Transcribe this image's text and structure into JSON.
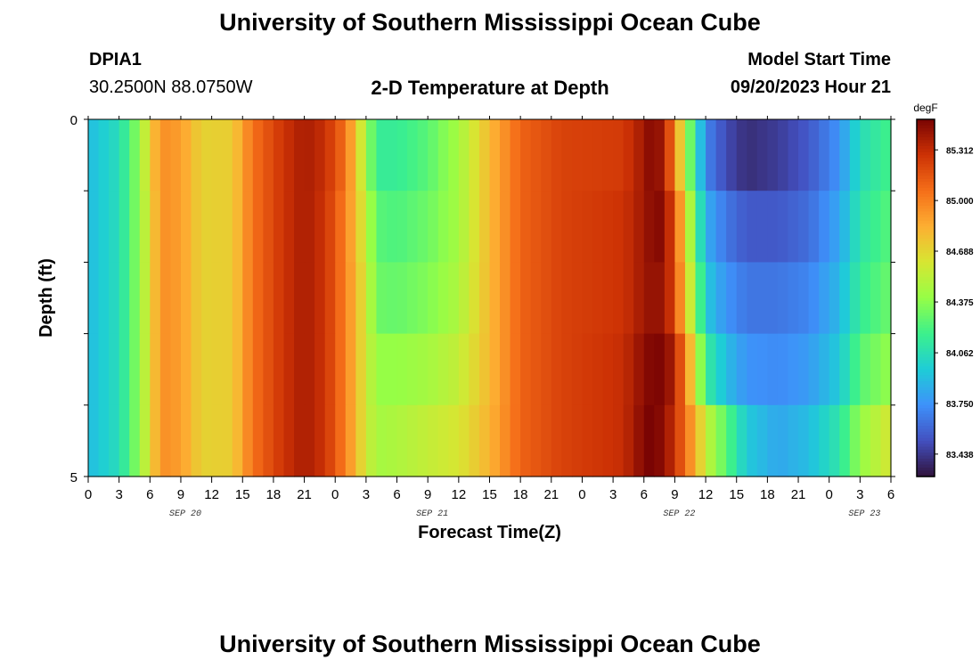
{
  "header": {
    "title": "University of Southern Mississippi Ocean Cube",
    "station_id": "DPIA1",
    "station_coords": "30.2500N  88.0750W",
    "plot_title": "2-D Temperature at Depth",
    "start_label": "Model Start Time",
    "start_value": "09/20/2023 Hour 21"
  },
  "footer": {
    "title": "University of Southern Mississippi Ocean Cube"
  },
  "chart_data": {
    "type": "heatmap",
    "title": "2-D Temperature at Depth",
    "xlabel": "Forecast Time(Z)",
    "ylabel": "Depth (ft)",
    "x_range_hours": [
      0,
      78
    ],
    "y_range": [
      0,
      5
    ],
    "y_ticks": [
      "0",
      "5"
    ],
    "x_ticks": [
      "0",
      "3",
      "6",
      "9",
      "12",
      "15",
      "18",
      "21",
      "0",
      "3",
      "6",
      "9",
      "12",
      "15",
      "18",
      "21",
      "0",
      "3",
      "6",
      "9",
      "12",
      "15",
      "18",
      "21",
      "0",
      "3",
      "6"
    ],
    "date_labels": [
      "SEP 20",
      "SEP 21",
      "SEP 22",
      "SEP 23"
    ],
    "colorbar": {
      "unit": "degF",
      "min": 83.3,
      "max": 85.5,
      "ticks": [
        "85.312",
        "85.000",
        "84.688",
        "84.375",
        "84.062",
        "83.750",
        "83.438"
      ]
    },
    "depth_layers": [
      0,
      1,
      2,
      3,
      4,
      5
    ],
    "columns_per_hour": 1,
    "temperature_profile": [
      {
        "h": 0,
        "t": [
          83.9,
          83.9,
          83.9,
          83.9,
          83.9
        ]
      },
      {
        "h": 3,
        "t": [
          84.05,
          84.05,
          84.05,
          84.05,
          84.05
        ]
      },
      {
        "h": 5,
        "t": [
          84.4,
          84.4,
          84.4,
          84.4,
          84.4
        ]
      },
      {
        "h": 6,
        "t": [
          84.7,
          84.65,
          84.65,
          84.65,
          84.65
        ]
      },
      {
        "h": 7,
        "t": [
          84.95,
          84.95,
          84.95,
          84.95,
          84.95
        ]
      },
      {
        "h": 9,
        "t": [
          84.9,
          84.9,
          84.9,
          84.9,
          84.9
        ]
      },
      {
        "h": 11,
        "t": [
          84.7,
          84.7,
          84.7,
          84.7,
          84.7
        ]
      },
      {
        "h": 14,
        "t": [
          84.72,
          84.72,
          84.72,
          84.72,
          84.72
        ]
      },
      {
        "h": 16,
        "t": [
          85.05,
          85.05,
          85.05,
          85.05,
          85.05
        ]
      },
      {
        "h": 19,
        "t": [
          85.28,
          85.28,
          85.28,
          85.28,
          85.28
        ]
      },
      {
        "h": 21,
        "t": [
          85.38,
          85.38,
          85.38,
          85.38,
          85.38
        ]
      },
      {
        "h": 23,
        "t": [
          85.3,
          85.28,
          85.28,
          85.28,
          85.28
        ]
      },
      {
        "h": 25,
        "t": [
          85.05,
          85.0,
          85.0,
          85.0,
          85.0
        ]
      },
      {
        "h": 27,
        "t": [
          84.45,
          84.55,
          84.6,
          84.6,
          84.6
        ]
      },
      {
        "h": 28,
        "t": [
          84.15,
          84.25,
          84.3,
          84.4,
          84.45
        ]
      },
      {
        "h": 30,
        "t": [
          84.15,
          84.22,
          84.28,
          84.4,
          84.48
        ]
      },
      {
        "h": 33,
        "t": [
          84.25,
          84.3,
          84.35,
          84.45,
          84.55
        ]
      },
      {
        "h": 36,
        "t": [
          84.45,
          84.45,
          84.48,
          84.55,
          84.62
        ]
      },
      {
        "h": 39,
        "t": [
          84.8,
          84.8,
          84.8,
          84.8,
          84.82
        ]
      },
      {
        "h": 42,
        "t": [
          85.1,
          85.1,
          85.1,
          85.1,
          85.1
        ]
      },
      {
        "h": 46,
        "t": [
          85.22,
          85.22,
          85.22,
          85.22,
          85.22
        ]
      },
      {
        "h": 52,
        "t": [
          85.25,
          85.28,
          85.28,
          85.3,
          85.3
        ]
      },
      {
        "h": 54,
        "t": [
          85.4,
          85.4,
          85.4,
          85.45,
          85.48
        ]
      },
      {
        "h": 55,
        "t": [
          85.5,
          85.48,
          85.45,
          85.5,
          85.52
        ]
      },
      {
        "h": 56,
        "t": [
          85.35,
          85.45,
          85.4,
          85.48,
          85.42
        ]
      },
      {
        "h": 57,
        "t": [
          85.0,
          85.15,
          85.2,
          85.35,
          85.3
        ]
      },
      {
        "h": 58,
        "t": [
          84.5,
          84.7,
          84.75,
          85.0,
          85.05
        ]
      },
      {
        "h": 59,
        "t": [
          84.1,
          84.25,
          84.4,
          84.6,
          84.85
        ]
      },
      {
        "h": 60,
        "t": [
          83.7,
          83.85,
          83.95,
          84.15,
          84.55
        ]
      },
      {
        "h": 62,
        "t": [
          83.5,
          83.65,
          83.75,
          83.9,
          84.25
        ]
      },
      {
        "h": 64,
        "t": [
          83.4,
          83.55,
          83.65,
          83.75,
          83.95
        ]
      },
      {
        "h": 67,
        "t": [
          83.45,
          83.55,
          83.65,
          83.72,
          83.82
        ]
      },
      {
        "h": 70,
        "t": [
          83.55,
          83.62,
          83.7,
          83.78,
          83.9
        ]
      },
      {
        "h": 73,
        "t": [
          83.75,
          83.82,
          83.88,
          83.95,
          84.1
        ]
      },
      {
        "h": 75,
        "t": [
          84.05,
          84.1,
          84.15,
          84.25,
          84.4
        ]
      },
      {
        "h": 78,
        "t": [
          84.2,
          84.25,
          84.3,
          84.4,
          84.62
        ]
      }
    ]
  }
}
